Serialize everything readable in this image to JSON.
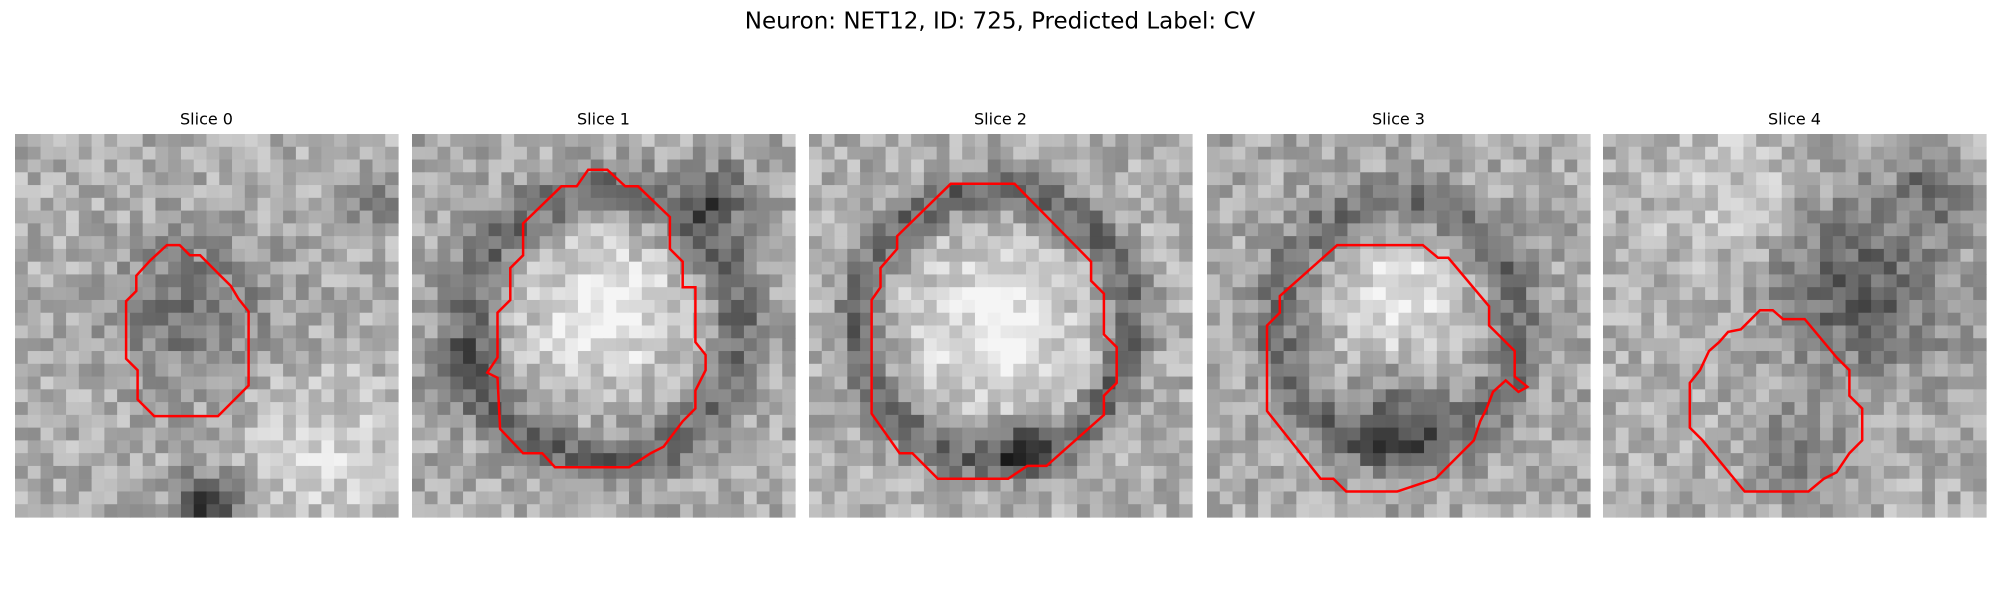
{
  "title": "Neuron: NET12, ID: 725, Predicted Label: CV",
  "panels": [
    {
      "title": "Slice 0"
    },
    {
      "title": "Slice 1"
    },
    {
      "title": "Slice 2"
    },
    {
      "title": "Slice 3"
    },
    {
      "title": "Slice 4"
    }
  ]
}
